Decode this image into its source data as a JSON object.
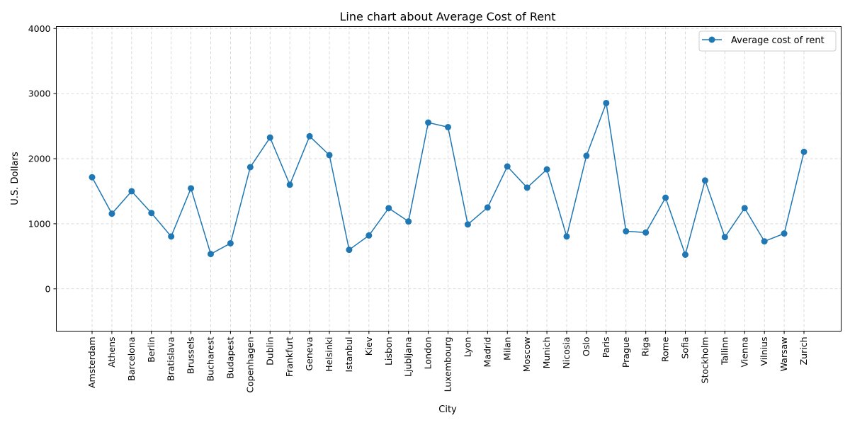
{
  "chart_data": {
    "type": "line",
    "title": "Line chart about Average Cost of Rent",
    "xlabel": "City",
    "ylabel": "U.S. Dollars",
    "ylim": [
      -650,
      4030
    ],
    "yticks": [
      0,
      1000,
      2000,
      3000,
      4000
    ],
    "grid": true,
    "legend_position": "top-right",
    "line_color": "#1f77b4",
    "categories": [
      "Amsterdam",
      "Athens",
      "Barcelona",
      "Berlin",
      "Bratislava",
      "Brussels",
      "Bucharest",
      "Budapest",
      "Copenhagen",
      "Dublin",
      "Frankfurt",
      "Geneva",
      "Helsinki",
      "Istanbul",
      "Kiev",
      "Lisbon",
      "Ljubljana",
      "London",
      "Luxembourg",
      "Lyon",
      "Madrid",
      "Milan",
      "Moscow",
      "Munich",
      "Nicosia",
      "Oslo",
      "Paris",
      "Prague",
      "Riga",
      "Rome",
      "Sofia",
      "Stockholm",
      "Tallinn",
      "Vienna",
      "Vilnius",
      "Warsaw",
      "Zurich"
    ],
    "series": [
      {
        "name": "Average cost of rent",
        "values": [
          1715,
          1155,
          1500,
          1165,
          805,
          1545,
          535,
          700,
          1870,
          2325,
          1600,
          2345,
          2055,
          600,
          820,
          1240,
          1035,
          2555,
          2485,
          990,
          1250,
          1880,
          1555,
          1835,
          805,
          2045,
          2855,
          885,
          865,
          1400,
          525,
          1665,
          795,
          1240,
          730,
          850,
          2105
        ]
      }
    ]
  }
}
